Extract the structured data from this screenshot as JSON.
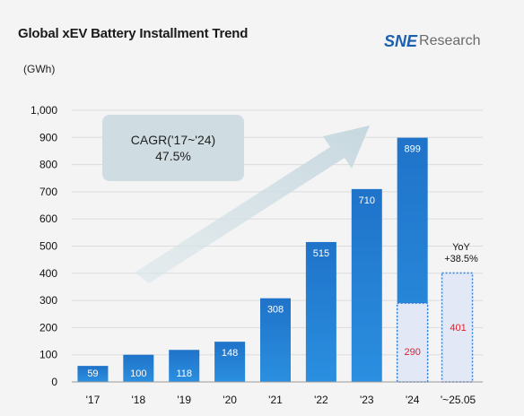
{
  "header": {
    "title": "Global xEV Battery Installment Trend",
    "logo_mark": "SNE",
    "logo_word": "Research",
    "unit": "(GWh)"
  },
  "annotations": {
    "cagr_line1": "CAGR('17~'24)",
    "cagr_line2": "47.5%",
    "yoy_line1": "YoY",
    "yoy_line2": "+38.5%"
  },
  "colors": {
    "bar_gradient_top": "#1f73c9",
    "bar_gradient_bottom": "#2b8fe0",
    "partial_fill": "#e3e8f7",
    "partial_border": "#2f7fd6",
    "highlight_text": "#e0212b",
    "arrow": "#cfdde3"
  },
  "chart_data": {
    "type": "bar",
    "title": "Global xEV Battery Installment Trend",
    "ylabel": "(GWh)",
    "xlabel": "",
    "ylim": [
      0,
      1000
    ],
    "yticks": [
      "0",
      "100",
      "200",
      "300",
      "400",
      "500",
      "600",
      "700",
      "800",
      "900",
      "1,000"
    ],
    "categories": [
      "'17",
      "'18",
      "'19",
      "'20",
      "'21",
      "'22",
      "'23",
      "'24",
      "'~25.05"
    ],
    "series": [
      {
        "values": [
          59,
          100,
          118,
          148,
          308,
          515,
          710,
          899,
          null
        ]
      },
      {
        "values": [
          null,
          null,
          null,
          null,
          null,
          null,
          null,
          290,
          401
        ]
      }
    ],
    "data_labels": [
      "59",
      "100",
      "118",
      "148",
      "308",
      "515",
      "710",
      "899",
      "290",
      "401"
    ],
    "grid": true
  }
}
